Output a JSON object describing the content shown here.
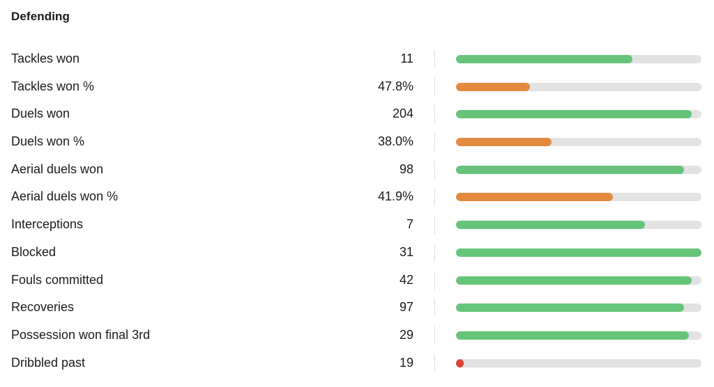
{
  "section": {
    "title": "Defending"
  },
  "colors": {
    "good": "#66c47a",
    "average": "#e48a3f",
    "poor": "#d9443b",
    "track": "#e2e2e2"
  },
  "stats": [
    {
      "label": "Tackles won",
      "value": "11",
      "percentile": 0.72,
      "tier": "good"
    },
    {
      "label": "Tackles won %",
      "value": "47.8%",
      "percentile": 0.3,
      "tier": "average"
    },
    {
      "label": "Duels won",
      "value": "204",
      "percentile": 0.96,
      "tier": "good"
    },
    {
      "label": "Duels won %",
      "value": "38.0%",
      "percentile": 0.39,
      "tier": "average"
    },
    {
      "label": "Aerial duels won",
      "value": "98",
      "percentile": 0.93,
      "tier": "good"
    },
    {
      "label": "Aerial duels won %",
      "value": "41.9%",
      "percentile": 0.64,
      "tier": "average"
    },
    {
      "label": "Interceptions",
      "value": "7",
      "percentile": 0.77,
      "tier": "good"
    },
    {
      "label": "Blocked",
      "value": "31",
      "percentile": 1.0,
      "tier": "good"
    },
    {
      "label": "Fouls committed",
      "value": "42",
      "percentile": 0.96,
      "tier": "good"
    },
    {
      "label": "Recoveries",
      "value": "97",
      "percentile": 0.93,
      "tier": "good"
    },
    {
      "label": "Possession won final 3rd",
      "value": "29",
      "percentile": 0.95,
      "tier": "good"
    },
    {
      "label": "Dribbled past",
      "value": "19",
      "percentile": 0.03,
      "tier": "poor"
    }
  ]
}
